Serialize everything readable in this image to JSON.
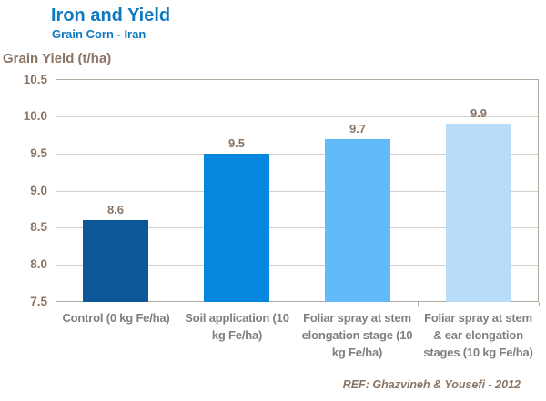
{
  "header": {
    "title": "Iron and Yield",
    "subtitle": "Grain Corn - Iran"
  },
  "footer": {
    "reference": "REF: Ghazvineh & Yousefi - 2012"
  },
  "chart_data": {
    "type": "bar",
    "title": "Iron and Yield",
    "subtitle": "Grain Corn - Iran",
    "ylabel": "Grain Yield (t/ha)",
    "xlabel": "",
    "ylim": [
      7.5,
      10.5
    ],
    "ytick_step": 0.5,
    "yticks": [
      "10.5",
      "10.0",
      "9.5",
      "9.0",
      "8.5",
      "8.0",
      "7.5"
    ],
    "grid": true,
    "legend": false,
    "categories": [
      "Control (0 kg Fe/ha)",
      "Soil application (10 kg Fe/ha)",
      "Foliar spray at stem elongation stage (10 kg Fe/ha)",
      "Foliar spray at stem & ear elongation stages (10 kg Fe/ha)"
    ],
    "values": [
      8.6,
      9.5,
      9.7,
      9.9
    ],
    "value_labels": [
      "8.6",
      "9.5",
      "9.7",
      "9.9"
    ],
    "bar_colors": [
      "#0b5798",
      "#0786e0",
      "#63bafa",
      "#b9dcf9"
    ],
    "reference": "REF: Ghazvineh & Yousefi - 2012",
    "colors": {
      "title": "#0f78c1",
      "axis_text": "#8a7464",
      "category_text": "#7f7f7f",
      "grid_line": "#d6cfc7",
      "plot_border": "#b3a89d",
      "background": "#ffffff"
    }
  }
}
